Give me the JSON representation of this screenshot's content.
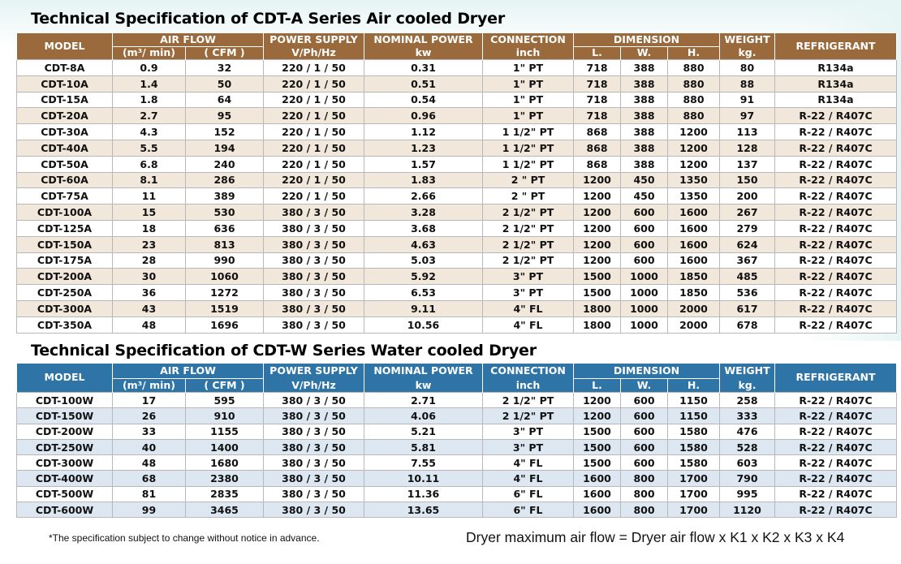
{
  "series_a": {
    "title": "Technical Specification of CDT-A Series Air cooled Dryer",
    "headers": {
      "model": "MODEL",
      "air_flow": "AIR FLOW",
      "air_flow_m3": "(m³/ min)",
      "air_flow_cfm": "( CFM )",
      "power_supply": "POWER SUPPLY",
      "power_supply_unit": "V/Ph/Hz",
      "nominal_power": "NOMINAL POWER",
      "nominal_power_unit": "kw",
      "connection": "CONNECTION",
      "connection_unit": "inch",
      "dimension": "DIMENSION",
      "dim_l": "L.",
      "dim_w": "W.",
      "dim_h": "H.",
      "weight": "WEIGHT",
      "weight_unit": "kg.",
      "refrigerant": "REFRIGERANT"
    },
    "rows": [
      [
        "CDT-8A",
        "0.9",
        "32",
        "220 / 1 / 50",
        "0.31",
        "1\" PT",
        "718",
        "388",
        "880",
        "80",
        "R134a"
      ],
      [
        "CDT-10A",
        "1.4",
        "50",
        "220 / 1 / 50",
        "0.51",
        "1\" PT",
        "718",
        "388",
        "880",
        "88",
        "R134a"
      ],
      [
        "CDT-15A",
        "1.8",
        "64",
        "220 / 1 / 50",
        "0.54",
        "1\" PT",
        "718",
        "388",
        "880",
        "91",
        "R134a"
      ],
      [
        "CDT-20A",
        "2.7",
        "95",
        "220 / 1 / 50",
        "0.96",
        "1\" PT",
        "718",
        "388",
        "880",
        "97",
        "R-22 / R407C"
      ],
      [
        "CDT-30A",
        "4.3",
        "152",
        "220 / 1 / 50",
        "1.12",
        "1 1/2\" PT",
        "868",
        "388",
        "1200",
        "113",
        "R-22 / R407C"
      ],
      [
        "CDT-40A",
        "5.5",
        "194",
        "220 / 1 / 50",
        "1.23",
        "1 1/2\" PT",
        "868",
        "388",
        "1200",
        "128",
        "R-22 / R407C"
      ],
      [
        "CDT-50A",
        "6.8",
        "240",
        "220 / 1 / 50",
        "1.57",
        "1 1/2\" PT",
        "868",
        "388",
        "1200",
        "137",
        "R-22 / R407C"
      ],
      [
        "CDT-60A",
        "8.1",
        "286",
        "220 / 1 / 50",
        "1.83",
        "2 \" PT",
        "1200",
        "450",
        "1350",
        "150",
        "R-22 / R407C"
      ],
      [
        "CDT-75A",
        "11",
        "389",
        "220 / 1 / 50",
        "2.66",
        "2 \" PT",
        "1200",
        "450",
        "1350",
        "200",
        "R-22 / R407C"
      ],
      [
        "CDT-100A",
        "15",
        "530",
        "380 / 3 / 50",
        "3.28",
        "2 1/2\" PT",
        "1200",
        "600",
        "1600",
        "267",
        "R-22 / R407C"
      ],
      [
        "CDT-125A",
        "18",
        "636",
        "380 / 3 / 50",
        "3.68",
        "2 1/2\" PT",
        "1200",
        "600",
        "1600",
        "279",
        "R-22 / R407C"
      ],
      [
        "CDT-150A",
        "23",
        "813",
        "380 / 3 / 50",
        "4.63",
        "2 1/2\" PT",
        "1200",
        "600",
        "1600",
        "624",
        "R-22 / R407C"
      ],
      [
        "CDT-175A",
        "28",
        "990",
        "380 / 3 / 50",
        "5.03",
        "2 1/2\" PT",
        "1200",
        "600",
        "1600",
        "367",
        "R-22 / R407C"
      ],
      [
        "CDT-200A",
        "30",
        "1060",
        "380 / 3 / 50",
        "5.92",
        "3\" PT",
        "1500",
        "1000",
        "1850",
        "485",
        "R-22 / R407C"
      ],
      [
        "CDT-250A",
        "36",
        "1272",
        "380 / 3 / 50",
        "6.53",
        "3\" PT",
        "1500",
        "1000",
        "1850",
        "536",
        "R-22 / R407C"
      ],
      [
        "CDT-300A",
        "43",
        "1519",
        "380 / 3 / 50",
        "9.11",
        "4\" FL",
        "1800",
        "1000",
        "2000",
        "617",
        "R-22 / R407C"
      ],
      [
        "CDT-350A",
        "48",
        "1696",
        "380 / 3 / 50",
        "10.56",
        "4\" FL",
        "1800",
        "1000",
        "2000",
        "678",
        "R-22 / R407C"
      ]
    ]
  },
  "series_w": {
    "title": "Technical Specification of CDT-W Series Water cooled Dryer",
    "headers": {
      "model": "MODEL",
      "air_flow": "AIR FLOW",
      "air_flow_m3": "(m³/ min)",
      "air_flow_cfm": "( CFM )",
      "power_supply": "POWER SUPPLY",
      "power_supply_unit": "V/Ph/Hz",
      "nominal_power": "NOMINAL POWER",
      "nominal_power_unit": "kw",
      "connection": "CONNECTION",
      "connection_unit": "inch",
      "dimension": "DIMENSION",
      "dim_l": "L.",
      "dim_w": "W.",
      "dim_h": "H.",
      "weight": "WEIGHT",
      "weight_unit": "kg.",
      "refrigerant": "REFRIGERANT"
    },
    "rows": [
      [
        "CDT-100W",
        "17",
        "595",
        "380 / 3 / 50",
        "2.71",
        "2 1/2\" PT",
        "1200",
        "600",
        "1150",
        "258",
        "R-22 / R407C"
      ],
      [
        "CDT-150W",
        "26",
        "910",
        "380 / 3 / 50",
        "4.06",
        "2 1/2\" PT",
        "1200",
        "600",
        "1150",
        "333",
        "R-22 / R407C"
      ],
      [
        "CDT-200W",
        "33",
        "1155",
        "380 / 3 / 50",
        "5.21",
        "3\" PT",
        "1500",
        "600",
        "1580",
        "476",
        "R-22 / R407C"
      ],
      [
        "CDT-250W",
        "40",
        "1400",
        "380 / 3 / 50",
        "5.81",
        "3\" PT",
        "1500",
        "600",
        "1580",
        "528",
        "R-22 / R407C"
      ],
      [
        "CDT-300W",
        "48",
        "1680",
        "380 / 3 / 50",
        "7.55",
        "4\" FL",
        "1500",
        "600",
        "1580",
        "603",
        "R-22 / R407C"
      ],
      [
        "CDT-400W",
        "68",
        "2380",
        "380 / 3 / 50",
        "10.11",
        "4\" FL",
        "1600",
        "800",
        "1700",
        "790",
        "R-22 / R407C"
      ],
      [
        "CDT-500W",
        "81",
        "2835",
        "380 / 3 / 50",
        "11.36",
        "6\" FL",
        "1600",
        "800",
        "1700",
        "995",
        "R-22 / R407C"
      ],
      [
        "CDT-600W",
        "99",
        "3465",
        "380 / 3 / 50",
        "13.65",
        "6\" FL",
        "1600",
        "800",
        "1700",
        "1120",
        "R-22 / R407C"
      ]
    ]
  },
  "footnote": "*The specification subject to change without notice in advance.",
  "formula": "Dryer maximum air flow = Dryer air flow x K1 x K2 x K3 x K4",
  "colors": {
    "series_a_header": "#9a6a3c",
    "series_a_stripe": "#f1e7da",
    "series_w_header": "#2f74a7",
    "series_w_stripe": "#dce7f2"
  }
}
